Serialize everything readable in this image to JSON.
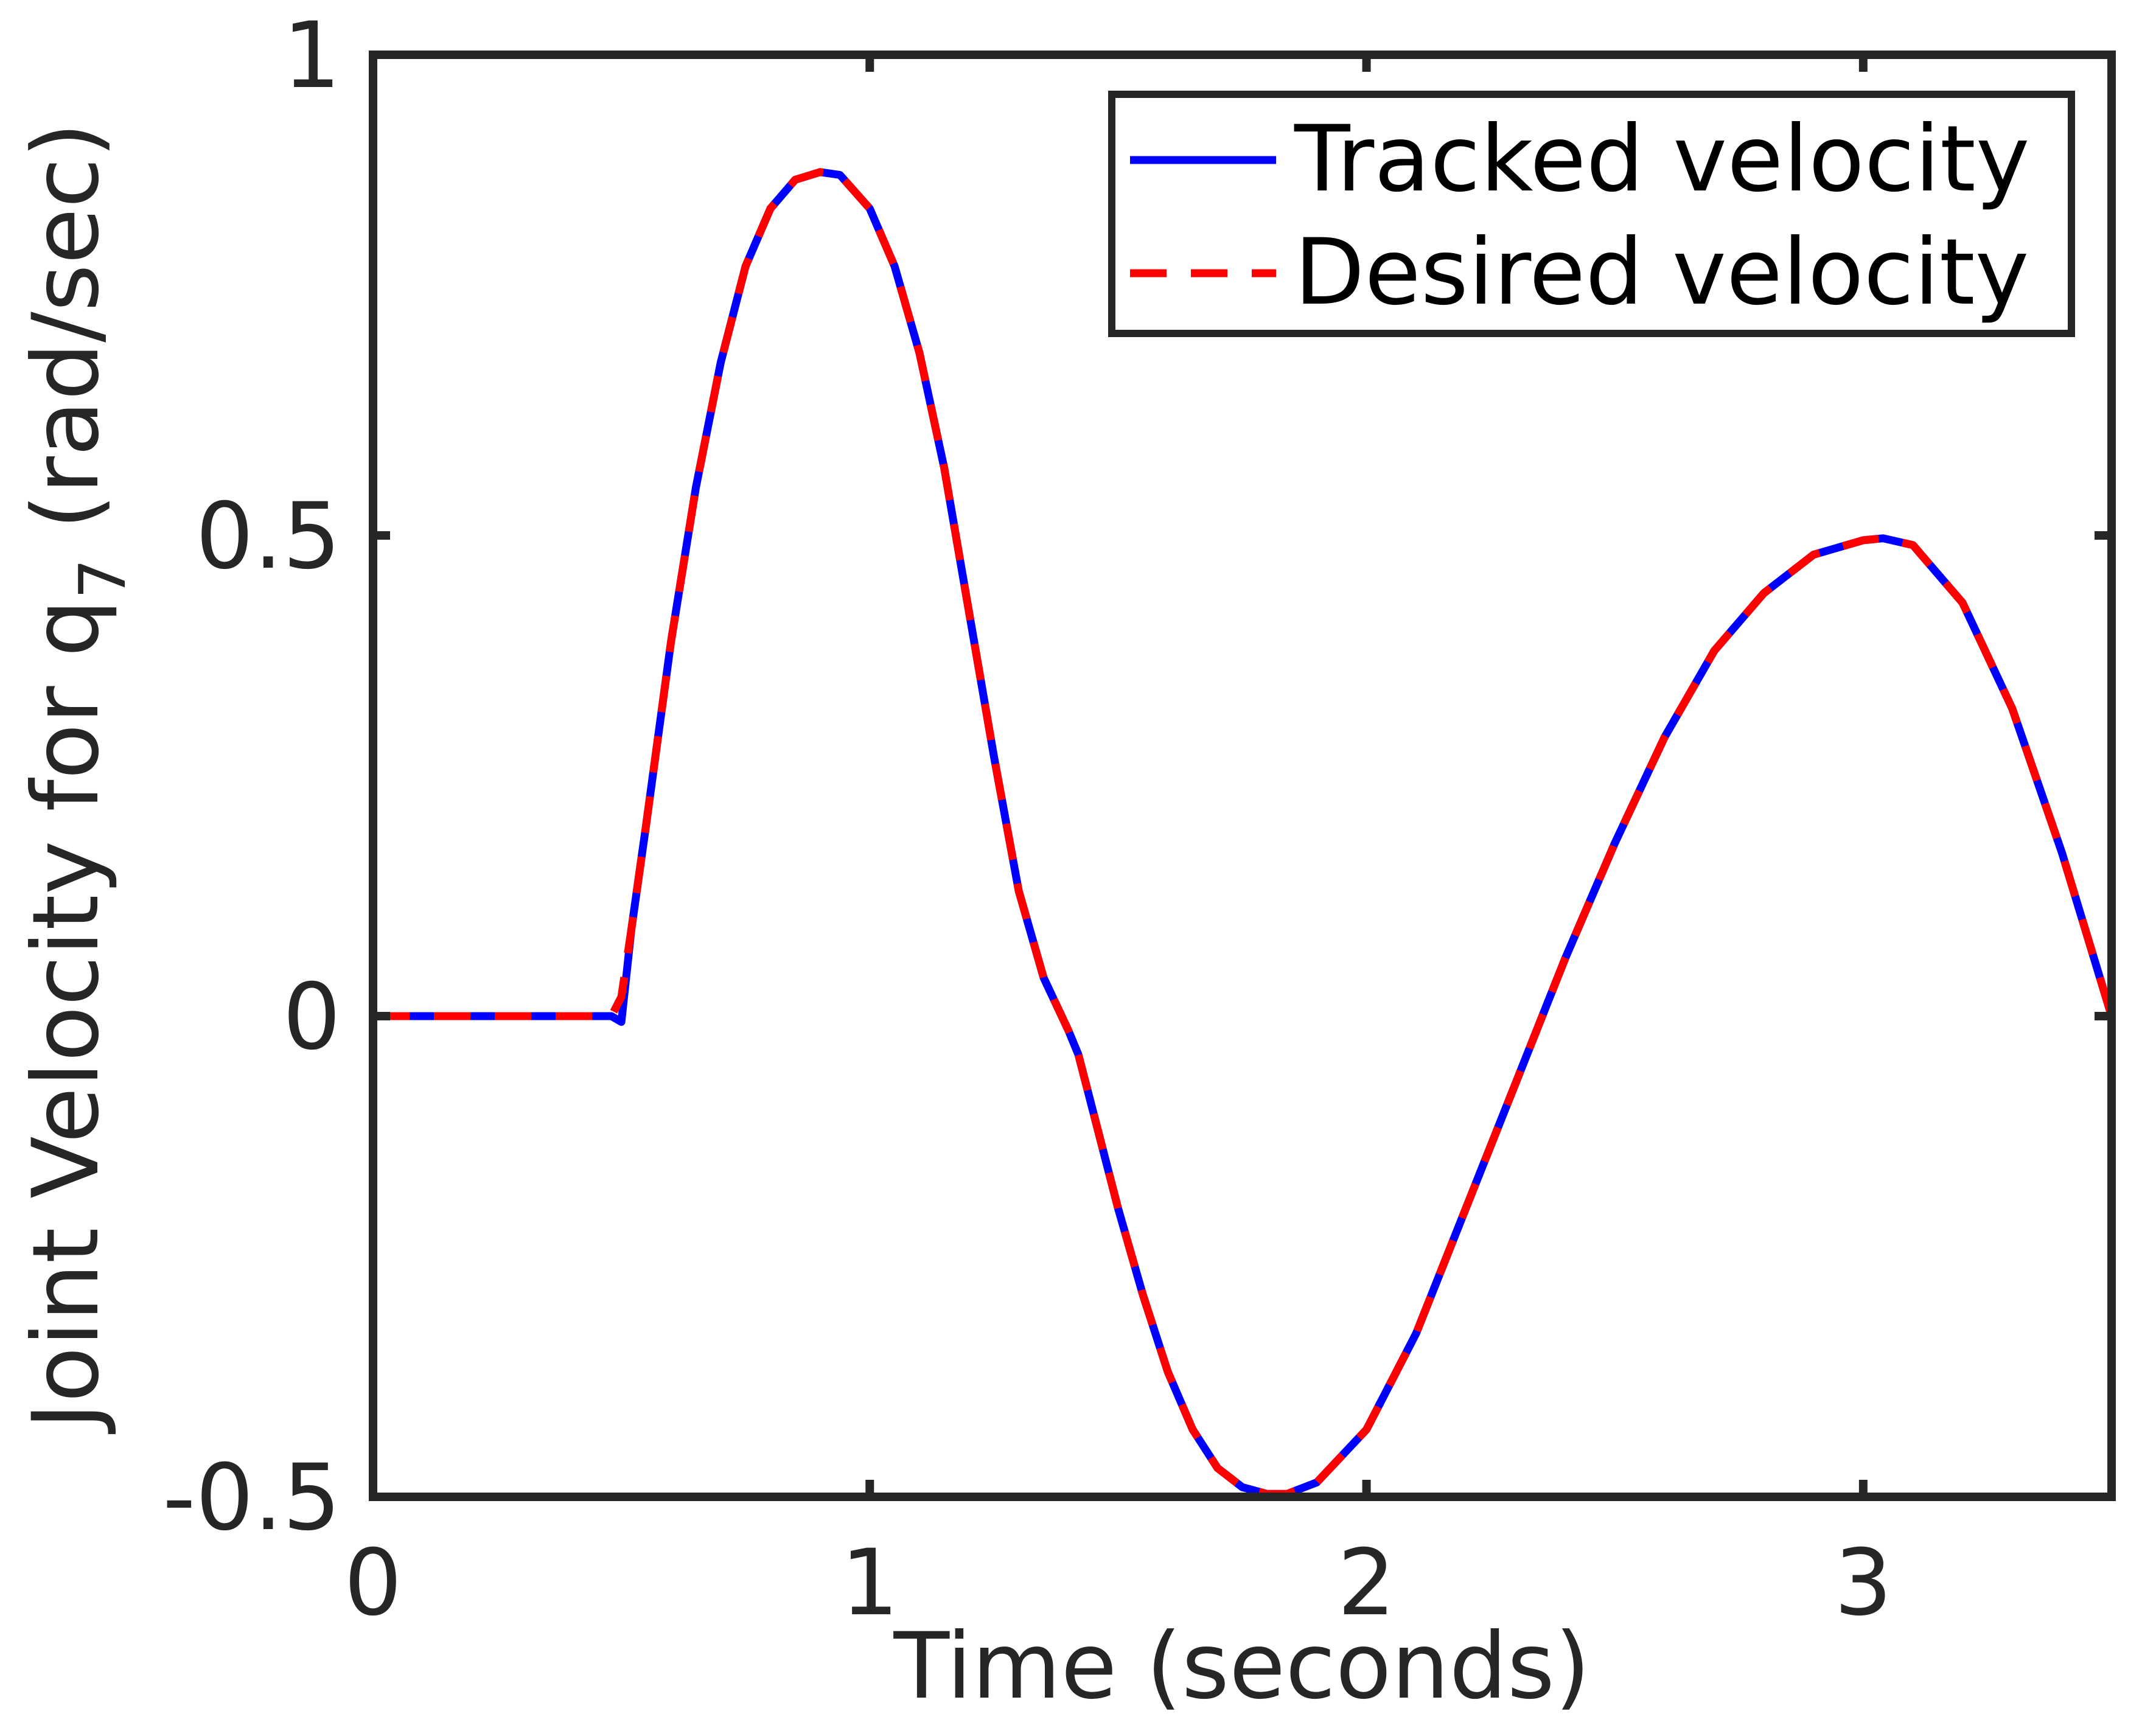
{
  "chart_data": {
    "type": "line",
    "title": "",
    "xlabel": "Time (seconds)",
    "ylabel": {
      "prefix": "Joint Velocity for q",
      "subscript": "7",
      "suffix": " (rad/sec)"
    },
    "xlim": [
      0,
      3.5
    ],
    "ylim": [
      -0.5,
      1
    ],
    "xticks": [
      0,
      1,
      2,
      3
    ],
    "xtick_labels": [
      "0",
      "1",
      "2",
      "3"
    ],
    "yticks": [
      -0.5,
      0,
      0.5,
      1
    ],
    "ytick_labels": [
      "-0.5",
      "0",
      "0.5",
      "1"
    ],
    "grid": false,
    "legend_position": "top-right",
    "series": [
      {
        "name": "Tracked velocity",
        "color": "#0000ff",
        "style": "solid",
        "x": [
          0,
          0.1,
          0.2,
          0.3,
          0.4,
          0.48,
          0.5,
          0.52,
          0.55,
          0.6,
          0.65,
          0.7,
          0.75,
          0.8,
          0.85,
          0.9,
          0.94,
          1.0,
          1.05,
          1.1,
          1.15,
          1.2,
          1.25,
          1.3,
          1.35,
          1.4,
          1.42,
          1.45,
          1.5,
          1.55,
          1.6,
          1.65,
          1.7,
          1.75,
          1.8,
          1.84,
          1.9,
          2.0,
          2.1,
          2.2,
          2.3,
          2.4,
          2.5,
          2.6,
          2.7,
          2.8,
          2.9,
          3.0,
          3.04,
          3.1,
          3.2,
          3.3,
          3.4,
          3.5
        ],
        "y": [
          0,
          0,
          0,
          0,
          0,
          0,
          -0.006,
          0.09,
          0.2,
          0.39,
          0.55,
          0.68,
          0.78,
          0.84,
          0.87,
          0.878,
          0.875,
          0.84,
          0.78,
          0.69,
          0.57,
          0.42,
          0.27,
          0.13,
          0.04,
          -0.015,
          -0.04,
          -0.1,
          -0.2,
          -0.29,
          -0.37,
          -0.43,
          -0.47,
          -0.49,
          -0.497,
          -0.497,
          -0.485,
          -0.43,
          -0.33,
          -0.2,
          -0.07,
          0.06,
          0.18,
          0.29,
          0.38,
          0.44,
          0.48,
          0.495,
          0.497,
          0.49,
          0.43,
          0.32,
          0.17,
          0
        ]
      },
      {
        "name": "Desired velocity",
        "color": "#ff0000",
        "style": "dashed",
        "x": [
          0,
          0.1,
          0.2,
          0.3,
          0.4,
          0.48,
          0.5,
          0.52,
          0.55,
          0.6,
          0.65,
          0.7,
          0.75,
          0.8,
          0.85,
          0.9,
          0.94,
          1.0,
          1.05,
          1.1,
          1.15,
          1.2,
          1.25,
          1.3,
          1.35,
          1.4,
          1.42,
          1.45,
          1.5,
          1.55,
          1.6,
          1.65,
          1.7,
          1.75,
          1.8,
          1.84,
          1.9,
          2.0,
          2.1,
          2.2,
          2.3,
          2.4,
          2.5,
          2.6,
          2.7,
          2.8,
          2.9,
          3.0,
          3.04,
          3.1,
          3.2,
          3.3,
          3.4,
          3.5
        ],
        "y": [
          0,
          0,
          0,
          0,
          0,
          0,
          0.02,
          0.09,
          0.2,
          0.39,
          0.55,
          0.68,
          0.78,
          0.84,
          0.87,
          0.878,
          0.875,
          0.84,
          0.78,
          0.69,
          0.57,
          0.42,
          0.27,
          0.13,
          0.04,
          -0.015,
          -0.04,
          -0.1,
          -0.2,
          -0.29,
          -0.37,
          -0.43,
          -0.47,
          -0.49,
          -0.497,
          -0.497,
          -0.485,
          -0.43,
          -0.33,
          -0.2,
          -0.07,
          0.06,
          0.18,
          0.29,
          0.38,
          0.44,
          0.48,
          0.495,
          0.497,
          0.49,
          0.43,
          0.32,
          0.17,
          0
        ]
      }
    ]
  }
}
